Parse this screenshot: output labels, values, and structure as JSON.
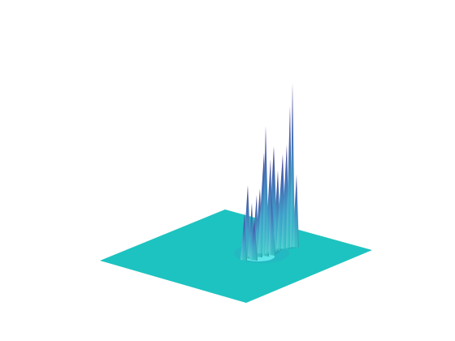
{
  "figure": {
    "kind": "3d-surface-plot",
    "view": "isometric",
    "colors": {
      "background": "#ffffff",
      "base_plane": "#1dc3c0",
      "peak_low": "#33c0c8",
      "peak_mid": "#3f88c0",
      "peak_high": "#4a3f8f"
    }
  }
}
